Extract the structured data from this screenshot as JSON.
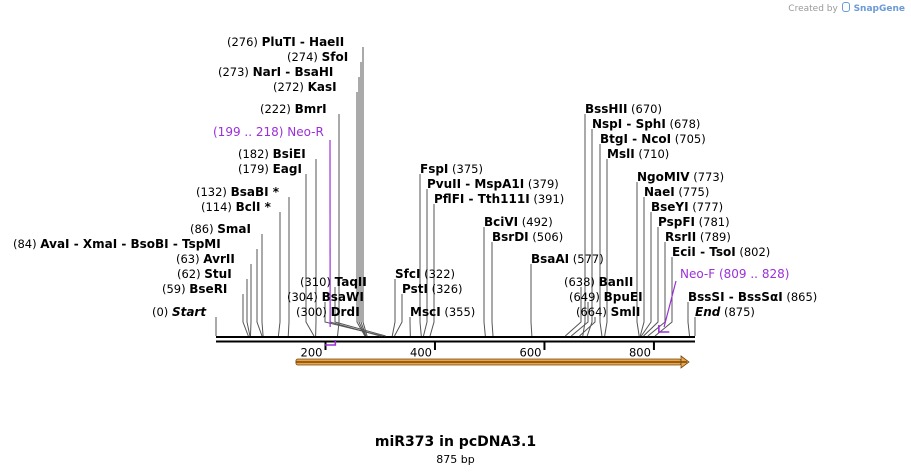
{
  "credit": {
    "prefix": "Created by",
    "brand": "SnapGene"
  },
  "plasmid": {
    "name": "miR373 in pcDNA3.1",
    "length_label": "875 bp",
    "length": 875
  },
  "ruler": {
    "ticks": [
      200,
      400,
      600,
      800
    ],
    "tick_labels": [
      "200",
      "400",
      "600",
      "800"
    ]
  },
  "feature": {
    "name": "orf-arrow",
    "start": 146,
    "end": 875,
    "color": "#f4a23c"
  },
  "sites": [
    {
      "pos_label": "(276)",
      "names": "PluTI  -  HaeII",
      "bp": 276,
      "side": "left"
    },
    {
      "pos_label": "(274)",
      "names": "SfoI",
      "bp": 274,
      "side": "left"
    },
    {
      "pos_label": "(273)",
      "names": "NarI  -  BsaHI",
      "bp": 273,
      "side": "left"
    },
    {
      "pos_label": "(272)",
      "names": "KasI",
      "bp": 272,
      "side": "left"
    },
    {
      "pos_label": "(222)",
      "names": "BmrI",
      "bp": 222,
      "side": "left"
    },
    {
      "pos_label": "(182)",
      "names": "BsiEI",
      "bp": 182,
      "side": "left"
    },
    {
      "pos_label": "(179)",
      "names": "EagI",
      "bp": 179,
      "side": "left"
    },
    {
      "pos_label": "(132)",
      "names": "BsaBI *",
      "bp": 132,
      "side": "left"
    },
    {
      "pos_label": "(114)",
      "names": "BclI *",
      "bp": 114,
      "side": "left"
    },
    {
      "pos_label": "(86)",
      "names": "SmaI",
      "bp": 86,
      "side": "left"
    },
    {
      "pos_label": "(84)",
      "names": "AvaI  -  XmaI  -  BsoBI  -  TspMI",
      "bp": 84,
      "side": "left"
    },
    {
      "pos_label": "(63)",
      "names": "AvrII",
      "bp": 63,
      "side": "left"
    },
    {
      "pos_label": "(62)",
      "names": "StuI",
      "bp": 62,
      "side": "left"
    },
    {
      "pos_label": "(59)",
      "names": "BseRI",
      "bp": 59,
      "side": "left"
    },
    {
      "pos_label": "(0)",
      "names": "Start",
      "bp": 0,
      "side": "left"
    },
    {
      "pos_label": "(310)",
      "names": "TaqII",
      "bp": 310,
      "side": "left"
    },
    {
      "pos_label": "(304)",
      "names": "BsaWI",
      "bp": 304,
      "side": "left"
    },
    {
      "pos_label": "(300)",
      "names": "DrdI",
      "bp": 300,
      "side": "left"
    },
    {
      "pos_label": "(375)",
      "names": "FspI",
      "bp": 375,
      "side": "right"
    },
    {
      "pos_label": "(379)",
      "names": "PvuII  -  MspA1I",
      "bp": 379,
      "side": "right"
    },
    {
      "pos_label": "(391)",
      "names": "PflFI  -  Tth111I",
      "bp": 391,
      "side": "right"
    },
    {
      "pos_label": "(322)",
      "names": "SfcI",
      "bp": 322,
      "side": "right"
    },
    {
      "pos_label": "(326)",
      "names": "PstI",
      "bp": 326,
      "side": "right"
    },
    {
      "pos_label": "(355)",
      "names": "MscI",
      "bp": 355,
      "side": "right"
    },
    {
      "pos_label": "(492)",
      "names": "BciVI",
      "bp": 492,
      "side": "right"
    },
    {
      "pos_label": "(506)",
      "names": "BsrDI",
      "bp": 506,
      "side": "right"
    },
    {
      "pos_label": "(577)",
      "names": "BsaAI",
      "bp": 577,
      "side": "right"
    },
    {
      "pos_label": "(670)",
      "names": "BssHII",
      "bp": 670,
      "side": "right"
    },
    {
      "pos_label": "(678)",
      "names": "NspI  -  SphI",
      "bp": 678,
      "side": "right"
    },
    {
      "pos_label": "(705)",
      "names": "BtgI  -  NcoI",
      "bp": 705,
      "side": "right"
    },
    {
      "pos_label": "(710)",
      "names": "MslI",
      "bp": 710,
      "side": "right"
    },
    {
      "pos_label": "(638)",
      "names": "BanII",
      "bp": 638,
      "side": "left"
    },
    {
      "pos_label": "(649)",
      "names": "BpuEI",
      "bp": 649,
      "side": "left"
    },
    {
      "pos_label": "(664)",
      "names": "SmlI",
      "bp": 664,
      "side": "left"
    },
    {
      "pos_label": "(773)",
      "names": "NgoMIV",
      "bp": 773,
      "side": "right"
    },
    {
      "pos_label": "(775)",
      "names": "NaeI",
      "bp": 775,
      "side": "right"
    },
    {
      "pos_label": "(777)",
      "names": "BseYI",
      "bp": 777,
      "side": "right"
    },
    {
      "pos_label": "(781)",
      "names": "PspFI",
      "bp": 781,
      "side": "right"
    },
    {
      "pos_label": "(789)",
      "names": "RsrII",
      "bp": 789,
      "side": "right"
    },
    {
      "pos_label": "(802)",
      "names": "EciI  -  TsoI",
      "bp": 802,
      "side": "right"
    },
    {
      "pos_label": "(865)",
      "names": "BssSI  -  BssSαI",
      "bp": 865,
      "side": "right"
    },
    {
      "pos_label": "(875)",
      "names": "End",
      "bp": 875,
      "side": "right"
    }
  ],
  "primers": [
    {
      "range_label": "(199 .. 218)",
      "name": "Neo-R",
      "start": 199,
      "end": 218,
      "side": "left",
      "color": "#9b30d9"
    },
    {
      "range_label": "(809 .. 828)",
      "name": "Neo-F",
      "start": 809,
      "end": 828,
      "side": "right",
      "color": "#9b30d9"
    }
  ]
}
